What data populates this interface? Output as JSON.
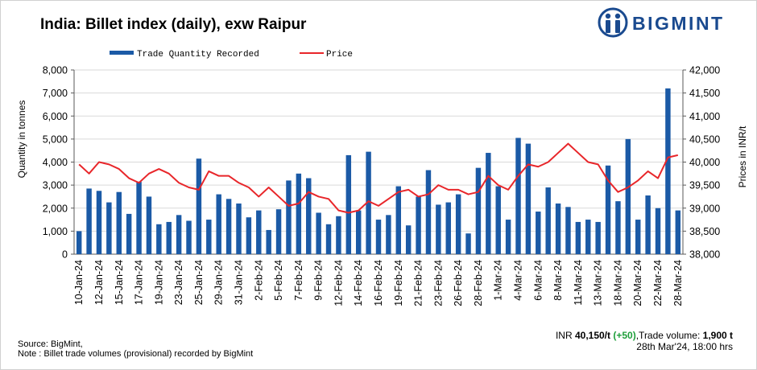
{
  "title": "India: Billet index (daily), exw Raipur",
  "brand": {
    "name": "BIGMINT",
    "color": "#1a4a8f"
  },
  "footer": {
    "source": "Source: BigMint,",
    "note": "Note : Billet trade volumes (provisional) recorded by BigMint",
    "price_currency": "INR",
    "price_value": "40,150/t",
    "price_change": "(+50)",
    "volume_label": ",Trade volume: ",
    "volume_value": "1,900 t",
    "timestamp": "28th Mar'24,  18:00 hrs"
  },
  "colors": {
    "bar": "#1b5aa6",
    "line": "#e8262a",
    "change": "#1e9e3a"
  },
  "chart_data": {
    "type": "bar+line",
    "title": "India: Billet index (daily), exw Raipur",
    "ylabel": "Quantity in tonnes",
    "y2label": "Prices in INR/t",
    "ylim": [
      0,
      8000
    ],
    "y2lim": [
      38000,
      42000
    ],
    "yticks": [
      "0",
      "1,000",
      "2,000",
      "3,000",
      "4,000",
      "5,000",
      "6,000",
      "7,000",
      "8,000"
    ],
    "y2ticks": [
      "38,000",
      "38,500",
      "39,000",
      "39,500",
      "40,000",
      "40,500",
      "41,000",
      "41,500",
      "42,000"
    ],
    "legend": [
      "Trade Quantity Recorded",
      "Price"
    ],
    "xtick_labels": [
      "10-Jan-24",
      "12-Jan-24",
      "15-Jan-24",
      "17-Jan-24",
      "19-Jan-24",
      "23-Jan-24",
      "25-Jan-24",
      "29-Jan-24",
      "31-Jan-24",
      "2-Feb-24",
      "5-Feb-24",
      "7-Feb-24",
      "9-Feb-24",
      "12-Feb-24",
      "14-Feb-24",
      "16-Feb-24",
      "19-Feb-24",
      "21-Feb-24",
      "23-Feb-24",
      "26-Feb-24",
      "28-Feb-24",
      "1-Mar-24",
      "4-Mar-24",
      "6-Mar-24",
      "8-Mar-24",
      "11-Mar-24",
      "13-Mar-24",
      "18-Mar-24",
      "20-Mar-24",
      "22-Mar-24",
      "28-Mar-24"
    ],
    "series": [
      {
        "name": "Trade Quantity Recorded",
        "type": "bar",
        "values": [
          1000,
          2850,
          2750,
          2250,
          2700,
          1750,
          3150,
          2500,
          1300,
          1400,
          1700,
          1450,
          4150,
          1500,
          2600,
          2400,
          2200,
          1600,
          1900,
          1050,
          1950,
          3200,
          3500,
          3300,
          1800,
          1300,
          1650,
          4300,
          1900,
          4450,
          1500,
          1700,
          2950,
          1250,
          2500,
          3650,
          2150,
          2250,
          2600,
          900,
          3750,
          4400,
          2950,
          1500,
          5050,
          4800,
          1850,
          2900,
          2200,
          2050,
          1400,
          1500,
          1400,
          3850,
          2300,
          5000,
          1500,
          2550,
          2000,
          7200,
          1900
        ]
      },
      {
        "name": "Price",
        "type": "line",
        "values": [
          39950,
          39750,
          40000,
          39950,
          39850,
          39650,
          39550,
          39750,
          39850,
          39750,
          39550,
          39450,
          39400,
          39800,
          39700,
          39700,
          39550,
          39450,
          39250,
          39450,
          39250,
          39050,
          39100,
          39350,
          39250,
          39200,
          38950,
          38900,
          38950,
          39150,
          39050,
          39200,
          39350,
          39400,
          39250,
          39300,
          39500,
          39400,
          39400,
          39300,
          39350,
          39700,
          39500,
          39400,
          39700,
          39950,
          39900,
          40000,
          40200,
          40400,
          40200,
          40000,
          39950,
          39600,
          39350,
          39450,
          39600,
          39800,
          39650,
          40100,
          40150
        ]
      }
    ]
  }
}
